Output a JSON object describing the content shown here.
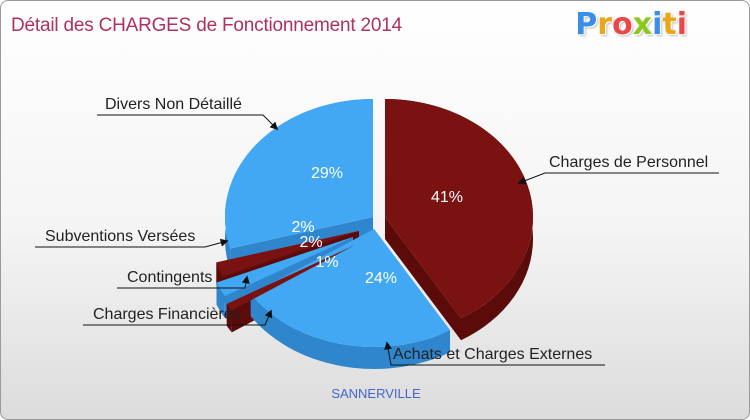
{
  "header": {
    "title": "Détail des CHARGES de Fonctionnement 2014",
    "logo_letters": [
      "P",
      "r",
      "o",
      "x",
      "i",
      "t",
      "i"
    ],
    "logo_colors": [
      "#3a8ee8",
      "#e8a81a",
      "#e84848",
      "#8cc81a",
      "#3a8ee8",
      "#e8a81a",
      "#e84848"
    ]
  },
  "footer": {
    "city": "SANNERVILLE"
  },
  "chart_data": {
    "type": "pie",
    "title": "Détail des CHARGES de Fonctionnement 2014",
    "slices": [
      {
        "label": "Charges de Personnel",
        "value": 41,
        "pct_label": "41%",
        "color": "#7a1212",
        "side_color": "#5c0b0b"
      },
      {
        "label": "Achats et Charges Externes",
        "value": 24,
        "pct_label": "24%",
        "color": "#42a8f4",
        "side_color": "#2f86cc"
      },
      {
        "label": "Charges Financières",
        "value": 1,
        "pct_label": "1%",
        "color": "#7a1212",
        "side_color": "#5c0b0b"
      },
      {
        "label": "Contingents",
        "value": 2,
        "pct_label": "2%",
        "color": "#42a8f4",
        "side_color": "#2f86cc"
      },
      {
        "label": "Subventions Versées",
        "value": 2,
        "pct_label": "2%",
        "color": "#7a1212",
        "side_color": "#5c0b0b"
      },
      {
        "label": "Divers Non Détaillé",
        "value": 29,
        "pct_label": "29%",
        "color": "#42a8f4",
        "side_color": "#2f86cc"
      }
    ]
  }
}
